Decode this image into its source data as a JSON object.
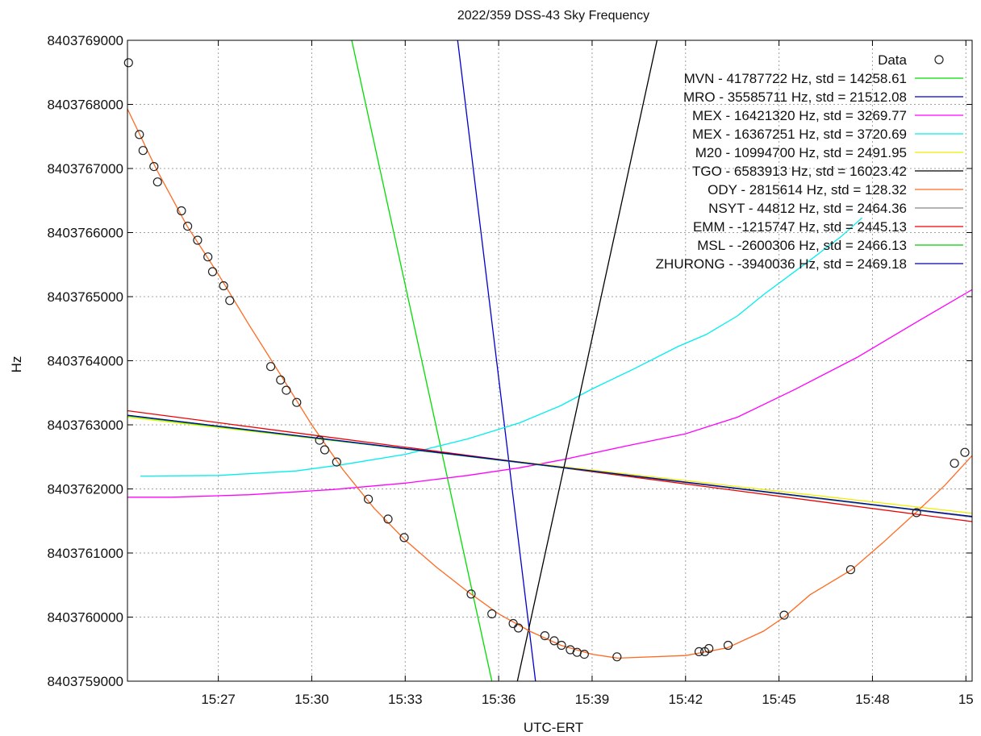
{
  "chart_data": {
    "type": "line",
    "title": "2022/359 DSS-43 Sky Frequency",
    "xlabel": "UTC-ERT",
    "ylabel": "Hz",
    "x_unit": "minutes",
    "xlim": [
      "15:24:05",
      "15:51:12"
    ],
    "ylim": [
      8403759000,
      8403769000
    ],
    "x_ticks": [
      "15:27",
      "15:30",
      "15:33",
      "15:36",
      "15:39",
      "15:42",
      "15:45",
      "15:48",
      "15"
    ],
    "y_ticks": [
      "8403759000",
      "8403760000",
      "8403761000",
      "8403762000",
      "8403763000",
      "8403764000",
      "8403765000",
      "8403766000",
      "8403767000",
      "8403768000",
      "8403769000"
    ],
    "grid": true,
    "legend_position": "top-right",
    "data_points": {
      "name": "Data",
      "points": [
        [
          "15:24:07",
          8403768650
        ],
        [
          "15:24:28",
          8403767530
        ],
        [
          "15:24:35",
          8403767280
        ],
        [
          "15:24:56",
          8403767030
        ],
        [
          "15:25:03",
          8403766790
        ],
        [
          "15:25:49",
          8403766340
        ],
        [
          "15:26:01",
          8403766100
        ],
        [
          "15:26:20",
          8403765880
        ],
        [
          "15:26:40",
          8403765620
        ],
        [
          "15:26:49",
          8403765390
        ],
        [
          "15:27:10",
          8403765170
        ],
        [
          "15:27:22",
          8403764940
        ],
        [
          "15:28:41",
          8403763910
        ],
        [
          "15:29:00",
          8403763700
        ],
        [
          "15:29:11",
          8403763540
        ],
        [
          "15:29:31",
          8403763350
        ],
        [
          "15:30:15",
          8403762760
        ],
        [
          "15:30:25",
          8403762610
        ],
        [
          "15:30:48",
          8403762420
        ],
        [
          "15:31:49",
          8403761840
        ],
        [
          "15:32:27",
          8403761530
        ],
        [
          "15:32:58",
          8403761240
        ],
        [
          "15:35:07",
          8403760360
        ],
        [
          "15:35:47",
          8403760050
        ],
        [
          "15:36:28",
          8403759900
        ],
        [
          "15:36:38",
          8403759830
        ],
        [
          "15:37:29",
          8403759710
        ],
        [
          "15:37:47",
          8403759630
        ],
        [
          "15:38:01",
          8403759560
        ],
        [
          "15:38:18",
          8403759490
        ],
        [
          "15:38:31",
          8403759450
        ],
        [
          "15:38:45",
          8403759420
        ],
        [
          "15:39:48",
          8403759380
        ],
        [
          "15:42:26",
          8403759460
        ],
        [
          "15:42:37",
          8403759460
        ],
        [
          "15:42:45",
          8403759510
        ],
        [
          "15:43:22",
          8403759560
        ],
        [
          "15:45:10",
          8403760030
        ],
        [
          "15:47:18",
          8403760740
        ],
        [
          "15:49:25",
          8403761630
        ],
        [
          "15:50:38",
          8403762400
        ],
        [
          "15:50:58",
          8403762570
        ]
      ]
    },
    "series": [
      {
        "name": "MVN - 41787722 Hz, std = 14258.61",
        "color": "#00dd00",
        "points": [
          [
            "15:31:17",
            8403769000
          ],
          [
            "15:35:47",
            8403759000
          ]
        ]
      },
      {
        "name": "MRO - 35585711 Hz, std = 21512.08",
        "color": "#0000cc",
        "points": [
          [
            "15:34:41",
            8403769000
          ],
          [
            "15:37:11",
            8403759000
          ]
        ]
      },
      {
        "name": "MEX - 16421320 Hz, std =  3269.77",
        "color": "#ff00ff",
        "points": [
          [
            "15:24:05",
            8403761870
          ],
          [
            "15:25:30",
            8403761870
          ],
          [
            "15:28:00",
            8403761910
          ],
          [
            "15:30:40",
            8403761990
          ],
          [
            "15:33:00",
            8403762090
          ],
          [
            "15:35:00",
            8403762210
          ],
          [
            "15:36:40",
            8403762330
          ],
          [
            "15:38:00",
            8403762450
          ],
          [
            "15:40:00",
            8403762660
          ],
          [
            "15:42:00",
            8403762860
          ],
          [
            "15:43:40",
            8403763120
          ],
          [
            "15:45:30",
            8403763550
          ],
          [
            "15:47:30",
            8403764050
          ],
          [
            "15:49:20",
            8403764580
          ],
          [
            "15:51:12",
            8403765110
          ]
        ]
      },
      {
        "name": "MEX - 16367251 Hz, std =  3720.69",
        "color": "#00eeee",
        "points": [
          [
            "15:24:30",
            8403762200
          ],
          [
            "15:27:00",
            8403762210
          ],
          [
            "15:29:30",
            8403762280
          ],
          [
            "15:31:00",
            8403762380
          ],
          [
            "15:33:00",
            8403762540
          ],
          [
            "15:35:00",
            8403762780
          ],
          [
            "15:36:40",
            8403763030
          ],
          [
            "15:38:00",
            8403763300
          ],
          [
            "15:39:00",
            8403763560
          ],
          [
            "15:40:20",
            8403763870
          ],
          [
            "15:41:45",
            8403764220
          ],
          [
            "15:42:40",
            8403764410
          ],
          [
            "15:43:40",
            8403764700
          ],
          [
            "15:44:30",
            8403765030
          ],
          [
            "15:46:00",
            8403765570
          ],
          [
            "15:47:00",
            8403765940
          ],
          [
            "15:47:40",
            8403766230
          ]
        ]
      },
      {
        "name": "M20 - 10994700 Hz, std =  2491.95",
        "color": "#eeee00",
        "points": [
          [
            "15:24:05",
            8403763120
          ],
          [
            "15:51:12",
            8403761620
          ]
        ]
      },
      {
        "name": "TGO -  6583913 Hz, std = 16023.42",
        "color": "#000000",
        "points": [
          [
            "15:36:36",
            8403759000
          ],
          [
            "15:41:05",
            8403769000
          ]
        ]
      },
      {
        "name": "ODY -  2815614 Hz, std =   128.32",
        "color": "#ff6a20",
        "points": [
          [
            "15:24:05",
            8403767930
          ],
          [
            "15:25:00",
            8403767000
          ],
          [
            "15:26:00",
            8403766100
          ],
          [
            "15:27:00",
            8403765350
          ],
          [
            "15:28:00",
            8403764550
          ],
          [
            "15:29:00",
            8403763780
          ],
          [
            "15:30:00",
            8403763000
          ],
          [
            "15:31:00",
            8403762300
          ],
          [
            "15:32:00",
            8403761700
          ],
          [
            "15:33:00",
            8403761200
          ],
          [
            "15:34:00",
            8403760780
          ],
          [
            "15:35:00",
            8403760400
          ],
          [
            "15:36:00",
            8403760050
          ],
          [
            "15:37:00",
            8403759780
          ],
          [
            "15:38:00",
            8403759560
          ],
          [
            "15:39:00",
            8403759420
          ],
          [
            "15:39:50",
            8403759360
          ],
          [
            "15:42:00",
            8403759400
          ],
          [
            "15:43:20",
            8403759520
          ],
          [
            "15:44:30",
            8403759780
          ],
          [
            "15:45:10",
            8403760000
          ],
          [
            "15:46:00",
            8403760350
          ],
          [
            "15:47:20",
            8403760740
          ],
          [
            "15:48:20",
            8403761160
          ],
          [
            "15:49:25",
            8403761640
          ],
          [
            "15:50:20",
            8403762060
          ],
          [
            "15:51:12",
            8403762520
          ]
        ]
      },
      {
        "name": "NSYT -    44812 Hz, std =  2464.36",
        "color": "#888888",
        "points": [
          [
            "15:24:05",
            8403763150
          ],
          [
            "15:51:12",
            8403761560
          ]
        ]
      },
      {
        "name": "EMM - -1215747 Hz, std =  2445.13",
        "color": "#ee0000",
        "points": [
          [
            "15:24:05",
            8403763220
          ],
          [
            "15:51:12",
            8403761490
          ]
        ]
      },
      {
        "name": "MSL - -2600306 Hz, std =  2466.13",
        "color": "#00cc00",
        "points": [
          [
            "15:24:05",
            8403763140
          ],
          [
            "15:51:12",
            8403761570
          ]
        ]
      },
      {
        "name": "ZHURONG - -3940036 Hz, std =  2469.18",
        "color": "#0000aa",
        "points": [
          [
            "15:24:05",
            8403763150
          ],
          [
            "15:51:12",
            8403761570
          ]
        ]
      }
    ]
  }
}
